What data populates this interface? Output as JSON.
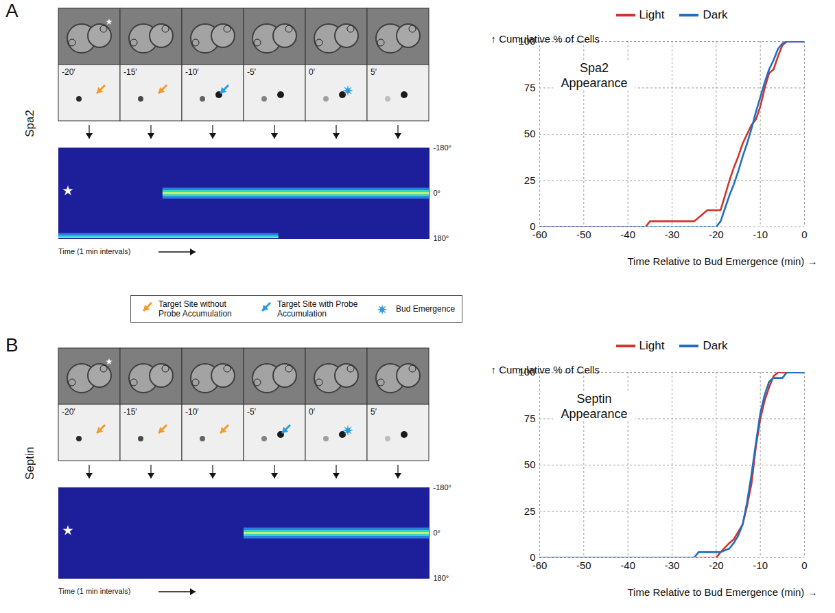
{
  "figure": {
    "legend": [
      {
        "label": "Target Site without Probe Accumulation",
        "color": "#f39a2b",
        "marker": "arrow"
      },
      {
        "label": "Target Site with Probe Accumulation",
        "color": "#2b9be6",
        "marker": "arrow"
      },
      {
        "label": "Bud Emergence",
        "color": "#2b9be6",
        "marker": "star"
      }
    ],
    "panels": [
      {
        "letter": "A",
        "probe": "Spa2",
        "frames": [
          {
            "time": "-20′",
            "marker": "Target Site without Probe Accumulation"
          },
          {
            "time": "-15′",
            "marker": "Target Site without Probe Accumulation"
          },
          {
            "time": "-10′",
            "marker": "Target Site with Probe Accumulation"
          },
          {
            "time": "-5′",
            "marker": null
          },
          {
            "time": "0′",
            "marker": "Bud Emergence"
          },
          {
            "time": "5′",
            "marker": null
          }
        ],
        "kymograph": {
          "xlabel": "Time (1 min intervals)",
          "xlim": [
            -21,
            11
          ],
          "ylim": [
            -180,
            180
          ],
          "yticks": [
            {
              "value": -180,
              "label": "-180°"
            },
            {
              "value": 0,
              "label": "0°"
            },
            {
              "value": 180,
              "label": "180°"
            }
          ],
          "tracks": [
            {
              "angle": 0,
              "start": -12,
              "end": 11
            },
            {
              "angle": 180,
              "start": -21,
              "end": -2
            }
          ]
        }
      },
      {
        "letter": "B",
        "probe": "Septin",
        "frames": [
          {
            "time": "-20′",
            "marker": "Target Site without Probe Accumulation"
          },
          {
            "time": "-15′",
            "marker": "Target Site without Probe Accumulation"
          },
          {
            "time": "-10′",
            "marker": "Target Site without Probe Accumulation"
          },
          {
            "time": "-5′",
            "marker": "Target Site with Probe Accumulation"
          },
          {
            "time": "0′",
            "marker": "Bud Emergence"
          },
          {
            "time": "5′",
            "marker": null
          }
        ],
        "kymograph": {
          "xlabel": "Time (1 min intervals)",
          "xlim": [
            -21,
            11
          ],
          "ylim": [
            -180,
            180
          ],
          "yticks": [
            {
              "value": -180,
              "label": "-180°"
            },
            {
              "value": 0,
              "label": "0°"
            },
            {
              "value": 180,
              "label": "180°"
            }
          ],
          "tracks": [
            {
              "angle": 0,
              "start": -5,
              "end": 11
            }
          ]
        }
      }
    ]
  },
  "chart_data": [
    {
      "type": "line",
      "title": "Spa2 Appearance",
      "xlabel": "Time Relative to Bud Emergence (min)",
      "ylabel": "Cumulative % of Cells",
      "x": [
        -60,
        -40,
        -36,
        -35,
        -30,
        -25,
        -22,
        -20,
        -19,
        -18,
        -17,
        -16,
        -15,
        -14,
        -13,
        -12,
        -11,
        -10,
        -9,
        -8,
        -7,
        -6,
        -5,
        -4,
        -2,
        0
      ],
      "series": [
        {
          "name": "Light",
          "color": "#d0342c",
          "values": [
            0,
            0,
            0,
            3,
            3,
            3,
            9,
            9,
            9,
            17,
            25,
            32,
            38,
            45,
            50,
            55,
            58,
            65,
            75,
            83,
            85,
            92,
            98,
            100,
            100,
            100
          ]
        },
        {
          "name": "Dark",
          "color": "#1f6fc0",
          "values": [
            0,
            0,
            0,
            0,
            0,
            0,
            0,
            0,
            3,
            10,
            17,
            23,
            30,
            38,
            45,
            53,
            62,
            70,
            78,
            85,
            90,
            96,
            99,
            100,
            100,
            100
          ]
        }
      ],
      "xlim": [
        -60,
        0
      ],
      "xticks": [
        -60,
        -50,
        -40,
        -30,
        -20,
        -10,
        0
      ],
      "ylim": [
        0,
        100
      ],
      "yticks": [
        0,
        25,
        50,
        75,
        100
      ],
      "grid": true,
      "legend": "top"
    },
    {
      "type": "line",
      "title": "Septin Appearance",
      "xlabel": "Time Relative to Bud Emergence (min)",
      "ylabel": "Cumulative % of Cells",
      "x": [
        -60,
        -30,
        -25,
        -24,
        -20,
        -19,
        -17,
        -16,
        -15,
        -14,
        -13,
        -12,
        -11,
        -10,
        -9,
        -8,
        -7,
        -6,
        -5,
        -4,
        0
      ],
      "series": [
        {
          "name": "Light",
          "color": "#d0342c",
          "values": [
            0,
            0,
            0,
            0,
            0,
            3,
            8,
            10,
            14,
            18,
            28,
            40,
            60,
            75,
            85,
            92,
            98,
            100,
            100,
            100,
            100
          ]
        },
        {
          "name": "Dark",
          "color": "#1f6fc0",
          "values": [
            0,
            0,
            0,
            3,
            3,
            3,
            5,
            8,
            12,
            18,
            30,
            45,
            62,
            78,
            88,
            95,
            97,
            97,
            97,
            100,
            100
          ]
        }
      ],
      "xlim": [
        -60,
        0
      ],
      "xticks": [
        -60,
        -50,
        -40,
        -30,
        -20,
        -10,
        0
      ],
      "ylim": [
        0,
        100
      ],
      "yticks": [
        0,
        25,
        50,
        75,
        100
      ],
      "grid": true,
      "legend": "top"
    }
  ]
}
